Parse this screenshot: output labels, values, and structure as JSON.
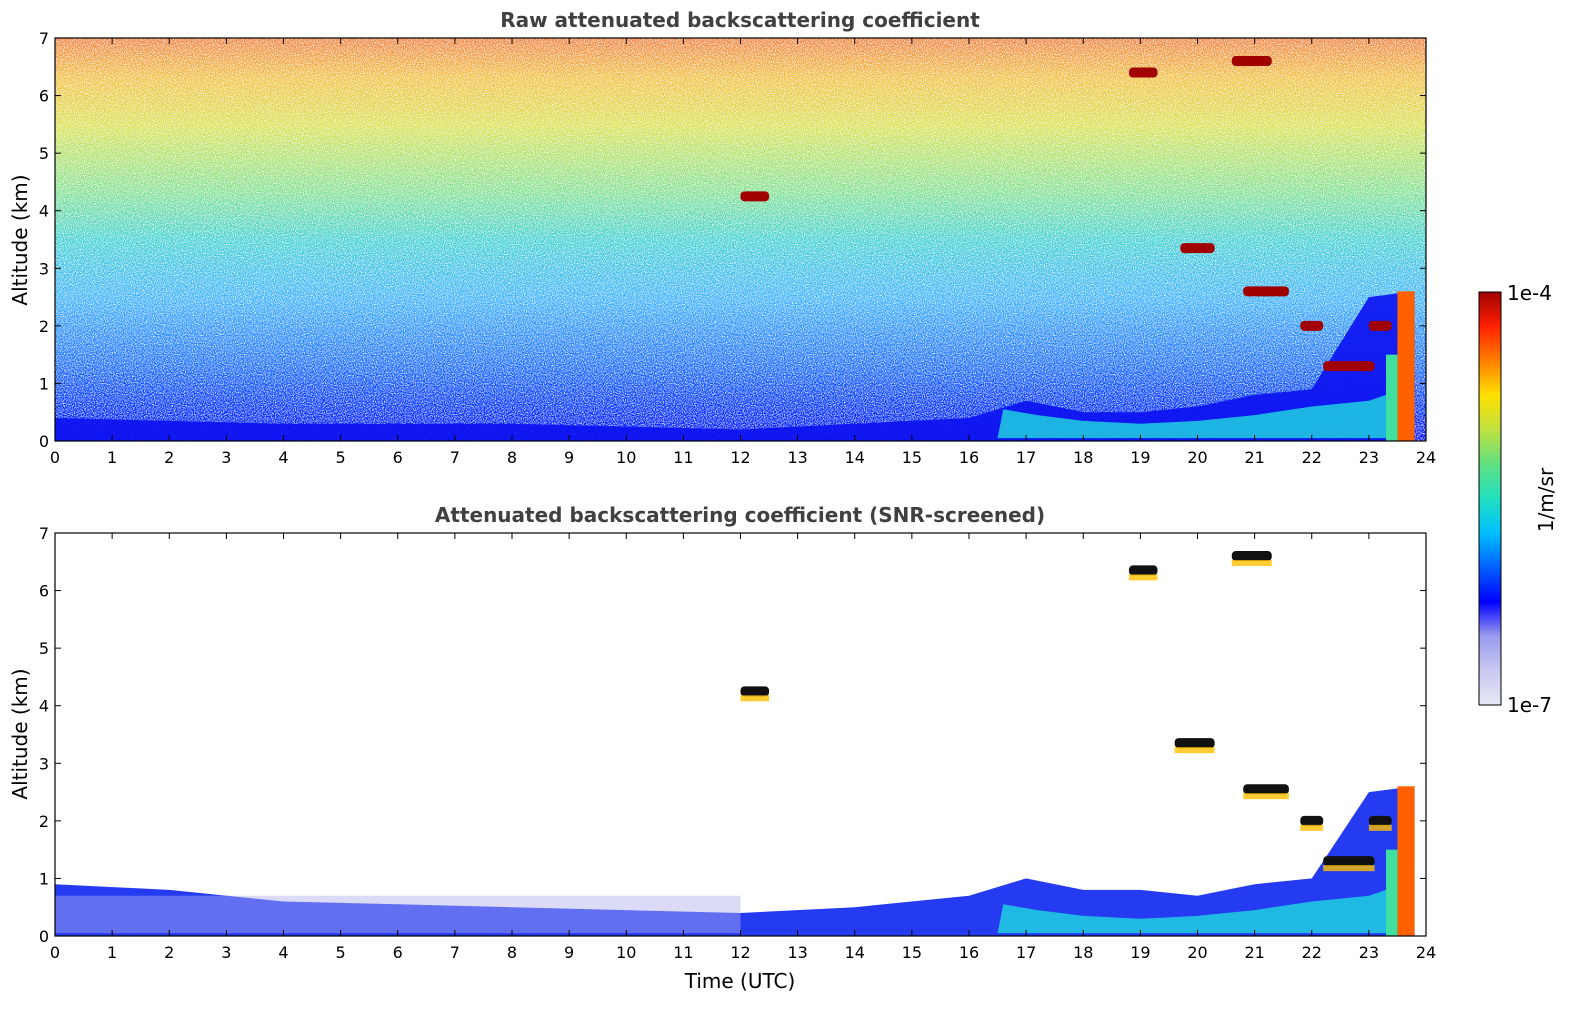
{
  "chart_data": [
    {
      "type": "heatmap",
      "title": "Raw attenuated backscattering coefficient",
      "xlabel": "",
      "ylabel": "Altitude (km)",
      "xlim": [
        0,
        24
      ],
      "ylim": [
        0,
        7
      ],
      "x_ticks": [
        "0",
        "1",
        "2",
        "3",
        "4",
        "5",
        "6",
        "7",
        "8",
        "9",
        "10",
        "11",
        "12",
        "13",
        "14",
        "15",
        "16",
        "17",
        "18",
        "19",
        "20",
        "21",
        "22",
        "23",
        "24"
      ],
      "y_ticks": [
        "0",
        "1",
        "2",
        "3",
        "4",
        "5",
        "6",
        "7"
      ],
      "field": {
        "time_h": [
          0,
          2,
          4,
          6,
          8,
          10,
          12,
          14,
          16,
          17,
          18,
          19,
          20,
          21,
          22,
          23,
          23.8
        ],
        "boundary_layer_top_km": [
          0.4,
          0.35,
          0.3,
          0.3,
          0.3,
          0.25,
          0.2,
          0.3,
          0.4,
          0.7,
          0.5,
          0.5,
          0.6,
          0.8,
          0.9,
          2.5,
          2.6
        ],
        "noise_level": "high above 1 km"
      },
      "features": [
        {
          "label": "cloud",
          "t_start": 12.0,
          "t_end": 12.5,
          "alt_km": 4.25
        },
        {
          "label": "cloud",
          "t_start": 18.8,
          "t_end": 19.3,
          "alt_km": 6.4
        },
        {
          "label": "cloud",
          "t_start": 20.6,
          "t_end": 21.3,
          "alt_km": 6.6
        },
        {
          "label": "cloud",
          "t_start": 19.7,
          "t_end": 20.3,
          "alt_km": 3.35
        },
        {
          "label": "cloud",
          "t_start": 20.8,
          "t_end": 21.6,
          "alt_km": 2.6
        },
        {
          "label": "cloud",
          "t_start": 21.8,
          "t_end": 22.2,
          "alt_km": 2.0
        },
        {
          "label": "cloud",
          "t_start": 22.2,
          "t_end": 23.1,
          "alt_km": 1.3
        },
        {
          "label": "cloud",
          "t_start": 23.0,
          "t_end": 23.4,
          "alt_km": 2.0
        }
      ]
    },
    {
      "type": "heatmap",
      "title": "Attenuated backscattering coefficient (SNR-screened)",
      "xlabel": "Time (UTC)",
      "ylabel": "Altitude (km)",
      "xlim": [
        0,
        24
      ],
      "ylim": [
        0,
        7
      ],
      "x_ticks": [
        "0",
        "1",
        "2",
        "3",
        "4",
        "5",
        "6",
        "7",
        "8",
        "9",
        "10",
        "11",
        "12",
        "13",
        "14",
        "15",
        "16",
        "17",
        "18",
        "19",
        "20",
        "21",
        "22",
        "23",
        "24"
      ],
      "y_ticks": [
        "0",
        "1",
        "2",
        "3",
        "4",
        "5",
        "6",
        "7"
      ],
      "field": {
        "time_h": [
          0,
          2,
          4,
          6,
          8,
          10,
          12,
          14,
          16,
          17,
          18,
          19,
          20,
          21,
          22,
          23,
          23.8
        ],
        "boundary_layer_top_km": [
          0.9,
          0.8,
          0.6,
          0.55,
          0.5,
          0.45,
          0.4,
          0.5,
          0.7,
          1.0,
          0.8,
          0.8,
          0.7,
          0.9,
          1.0,
          2.5,
          2.6
        ],
        "noise_level": "screened"
      },
      "features": [
        {
          "label": "cloud",
          "t_start": 12.0,
          "t_end": 12.5,
          "alt_km": 4.25
        },
        {
          "label": "cloud",
          "t_start": 18.8,
          "t_end": 19.3,
          "alt_km": 6.35
        },
        {
          "label": "cloud",
          "t_start": 20.6,
          "t_end": 21.3,
          "alt_km": 6.6
        },
        {
          "label": "cloud",
          "t_start": 19.6,
          "t_end": 20.3,
          "alt_km": 3.35
        },
        {
          "label": "cloud",
          "t_start": 20.8,
          "t_end": 21.6,
          "alt_km": 2.55
        },
        {
          "label": "cloud",
          "t_start": 21.8,
          "t_end": 22.2,
          "alt_km": 2.0
        },
        {
          "label": "cloud",
          "t_start": 22.2,
          "t_end": 23.1,
          "alt_km": 1.3
        },
        {
          "label": "cloud",
          "t_start": 23.0,
          "t_end": 23.4,
          "alt_km": 2.0
        }
      ]
    }
  ],
  "colorbar": {
    "label": "1/m/sr",
    "min_label": "1e-7",
    "max_label": "1e-4",
    "colors": [
      "#e8e8f8",
      "#c8c8f0",
      "#9a9aee",
      "#0000ff",
      "#0060ff",
      "#00c0ff",
      "#20e0c0",
      "#60e080",
      "#c0e040",
      "#ffe000",
      "#ff8000",
      "#ff2000",
      "#a00000"
    ]
  }
}
